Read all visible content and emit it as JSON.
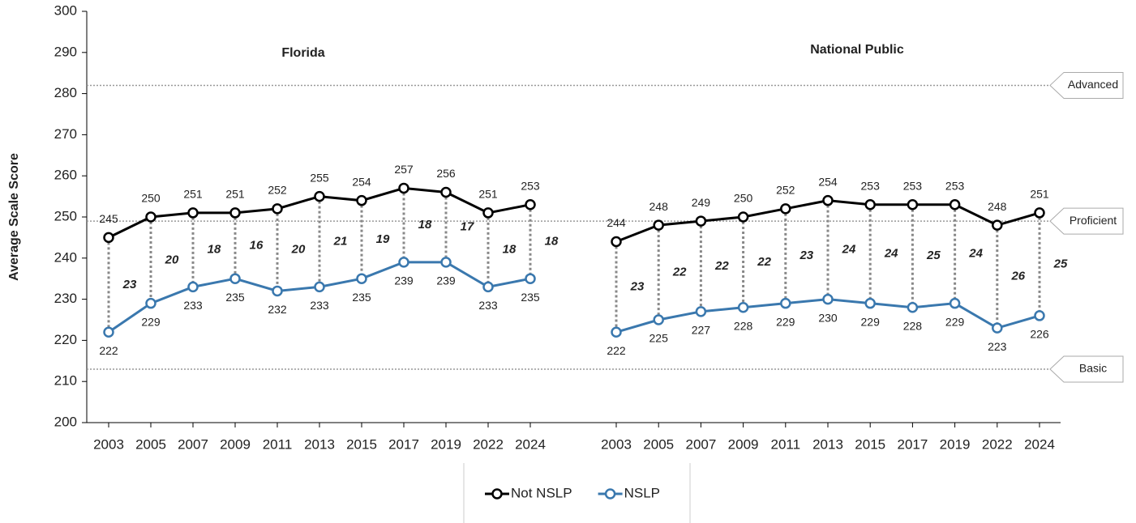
{
  "chart_data": {
    "type": "line",
    "y_label": "Average Scale Score",
    "ylim": [
      200,
      300
    ],
    "yticks": [
      200,
      210,
      220,
      230,
      240,
      250,
      260,
      270,
      280,
      290,
      300
    ],
    "levels": [
      {
        "label": "Advanced",
        "value": 282
      },
      {
        "label": "Proficient",
        "value": 249
      },
      {
        "label": "Basic",
        "value": 213
      }
    ],
    "legend": [
      {
        "name": "Not NSLP",
        "color": "#000000"
      },
      {
        "name": "NSLP",
        "color": "#3a78ae"
      }
    ],
    "panels": [
      {
        "title": "Florida",
        "categories": [
          "2003",
          "2005",
          "2007",
          "2009",
          "2011",
          "2013",
          "2015",
          "2017",
          "2019",
          "2022",
          "2024"
        ],
        "series": [
          {
            "values": [
              245,
              250,
              251,
              251,
              252,
              255,
              254,
              257,
              256,
              251,
              253
            ]
          },
          {
            "values": [
              222,
              229,
              233,
              235,
              232,
              233,
              235,
              239,
              239,
              233,
              235
            ]
          }
        ],
        "gaps": [
          23,
          20,
          18,
          16,
          20,
          21,
          19,
          18,
          17,
          18,
          18
        ]
      },
      {
        "title": "National Public",
        "categories": [
          "2003",
          "2005",
          "2007",
          "2009",
          "2011",
          "2013",
          "2015",
          "2017",
          "2019",
          "2022",
          "2024"
        ],
        "series": [
          {
            "values": [
              244,
              248,
              249,
              250,
              252,
              254,
              253,
              253,
              253,
              248,
              251
            ]
          },
          {
            "values": [
              222,
              225,
              227,
              228,
              229,
              230,
              229,
              228,
              229,
              223,
              226
            ]
          }
        ],
        "gaps": [
          23,
          22,
          22,
          22,
          23,
          24,
          24,
          25,
          24,
          26,
          25
        ]
      }
    ]
  }
}
